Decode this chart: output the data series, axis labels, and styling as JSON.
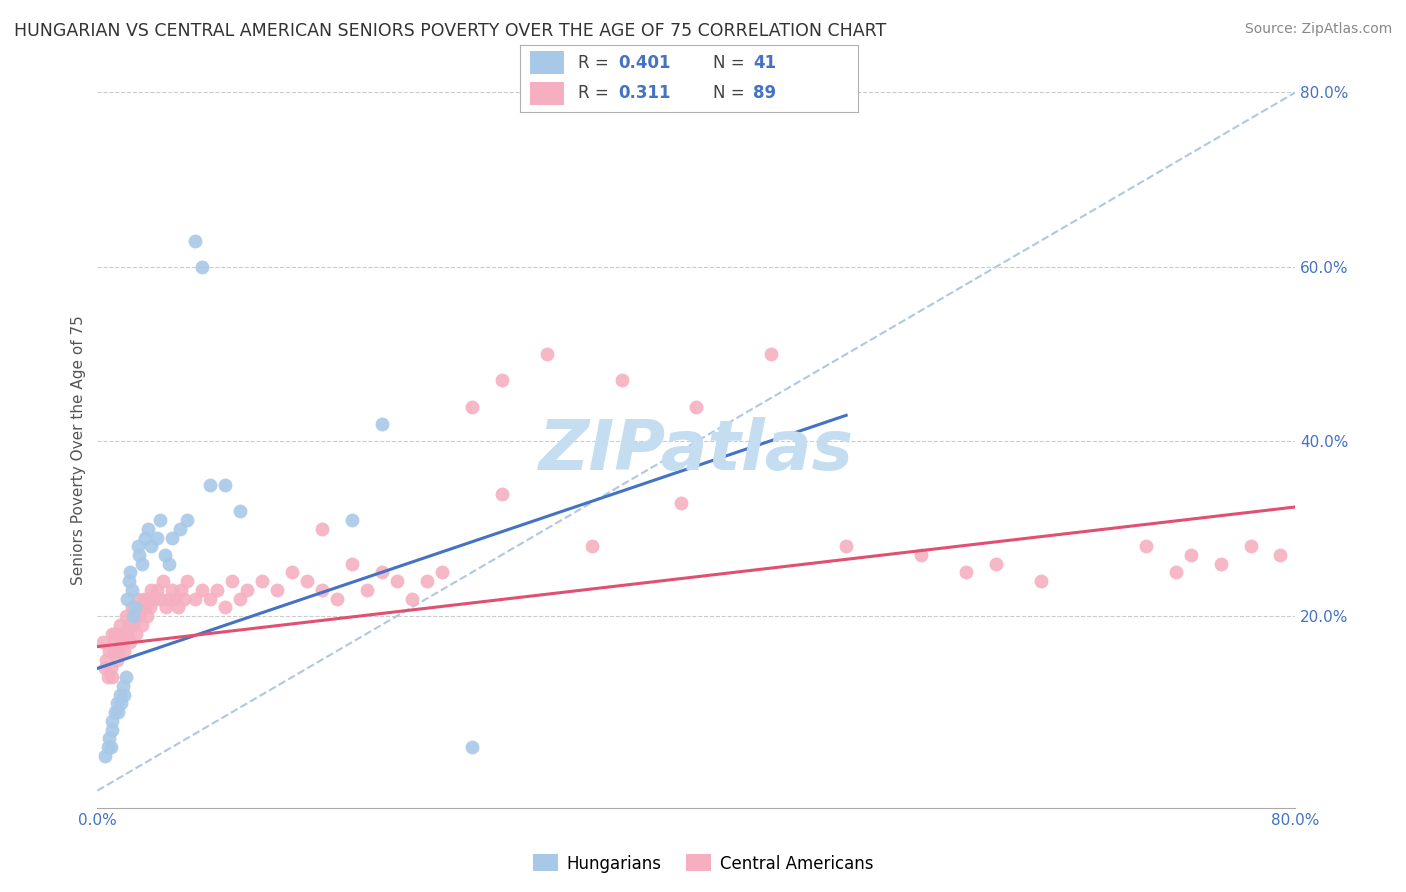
{
  "title": "HUNGARIAN VS CENTRAL AMERICAN SENIORS POVERTY OVER THE AGE OF 75 CORRELATION CHART",
  "source": "Source: ZipAtlas.com",
  "ylabel": "Seniors Poverty Over the Age of 75",
  "xlim": [
    0,
    0.8
  ],
  "ylim": [
    -0.02,
    0.8
  ],
  "legend1_label": "Hungarians",
  "legend2_label": "Central Americans",
  "legend1_R_label": "R = ",
  "legend1_R_val": "0.401",
  "legend1_N_label": "N = ",
  "legend1_N_val": "41",
  "legend2_R_label": "R = ",
  "legend2_R_val": "0.311",
  "legend2_N_label": "N = ",
  "legend2_N_val": "89",
  "color_hungarian": "#a8c8e8",
  "color_central": "#f5afc0",
  "line_color_hungarian": "#4472c4",
  "line_color_central": "#e05070",
  "dashed_line_color": "#b0c8e0",
  "background_color": "#ffffff",
  "watermark_text": "ZIPatlas",
  "watermark_color": "#c5ddf0",
  "title_fontsize": 12.5,
  "source_fontsize": 10,
  "axis_label_fontsize": 11,
  "tick_fontsize": 11,
  "legend_fontsize": 12,
  "hun_line_start_x": 0.0,
  "hun_line_start_y": 0.14,
  "hun_line_end_x": 0.5,
  "hun_line_end_y": 0.43,
  "cen_line_start_x": 0.0,
  "cen_line_start_y": 0.165,
  "cen_line_end_x": 0.8,
  "cen_line_end_y": 0.325,
  "hungarians_x": [
    0.005,
    0.007,
    0.008,
    0.009,
    0.01,
    0.01,
    0.012,
    0.013,
    0.014,
    0.015,
    0.016,
    0.017,
    0.018,
    0.019,
    0.02,
    0.021,
    0.022,
    0.023,
    0.024,
    0.025,
    0.027,
    0.028,
    0.03,
    0.032,
    0.034,
    0.036,
    0.04,
    0.042,
    0.045,
    0.048,
    0.05,
    0.055,
    0.06,
    0.065,
    0.07,
    0.075,
    0.085,
    0.095,
    0.17,
    0.19,
    0.25
  ],
  "hungarians_y": [
    0.04,
    0.05,
    0.06,
    0.05,
    0.07,
    0.08,
    0.09,
    0.1,
    0.09,
    0.11,
    0.1,
    0.12,
    0.11,
    0.13,
    0.22,
    0.24,
    0.25,
    0.23,
    0.2,
    0.21,
    0.28,
    0.27,
    0.26,
    0.29,
    0.3,
    0.28,
    0.29,
    0.31,
    0.27,
    0.26,
    0.29,
    0.3,
    0.31,
    0.63,
    0.6,
    0.35,
    0.35,
    0.32,
    0.31,
    0.42,
    0.05
  ],
  "central_x": [
    0.004,
    0.005,
    0.006,
    0.007,
    0.008,
    0.009,
    0.01,
    0.01,
    0.011,
    0.011,
    0.012,
    0.013,
    0.014,
    0.015,
    0.016,
    0.017,
    0.018,
    0.019,
    0.02,
    0.021,
    0.022,
    0.023,
    0.024,
    0.025,
    0.026,
    0.027,
    0.028,
    0.029,
    0.03,
    0.031,
    0.032,
    0.033,
    0.034,
    0.035,
    0.036,
    0.038,
    0.04,
    0.042,
    0.044,
    0.046,
    0.048,
    0.05,
    0.052,
    0.054,
    0.056,
    0.058,
    0.06,
    0.065,
    0.07,
    0.075,
    0.08,
    0.085,
    0.09,
    0.095,
    0.1,
    0.11,
    0.12,
    0.13,
    0.14,
    0.15,
    0.16,
    0.17,
    0.18,
    0.19,
    0.2,
    0.21,
    0.22,
    0.23,
    0.25,
    0.27,
    0.3,
    0.35,
    0.4,
    0.45,
    0.5,
    0.55,
    0.58,
    0.6,
    0.63,
    0.7,
    0.72,
    0.73,
    0.75,
    0.77,
    0.79,
    0.27,
    0.33,
    0.39,
    0.15
  ],
  "central_y": [
    0.17,
    0.14,
    0.15,
    0.13,
    0.16,
    0.14,
    0.18,
    0.13,
    0.17,
    0.16,
    0.18,
    0.15,
    0.16,
    0.19,
    0.17,
    0.18,
    0.16,
    0.2,
    0.18,
    0.19,
    0.17,
    0.21,
    0.19,
    0.2,
    0.18,
    0.22,
    0.2,
    0.21,
    0.19,
    0.22,
    0.21,
    0.2,
    0.22,
    0.21,
    0.23,
    0.22,
    0.23,
    0.22,
    0.24,
    0.21,
    0.22,
    0.23,
    0.22,
    0.21,
    0.23,
    0.22,
    0.24,
    0.22,
    0.23,
    0.22,
    0.23,
    0.21,
    0.24,
    0.22,
    0.23,
    0.24,
    0.23,
    0.25,
    0.24,
    0.23,
    0.22,
    0.26,
    0.23,
    0.25,
    0.24,
    0.22,
    0.24,
    0.25,
    0.44,
    0.47,
    0.5,
    0.47,
    0.44,
    0.5,
    0.28,
    0.27,
    0.25,
    0.26,
    0.24,
    0.28,
    0.25,
    0.27,
    0.26,
    0.28,
    0.27,
    0.34,
    0.28,
    0.33,
    0.3
  ]
}
